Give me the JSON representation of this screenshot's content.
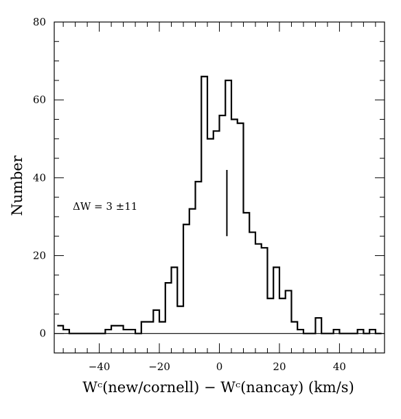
{
  "chart_data": {
    "type": "histogram",
    "xlabel": "Wᶜ(new/cornell) − Wᶜ(nancay) (km/s)",
    "ylabel": "Number",
    "xlim": [
      -55,
      55
    ],
    "ylim": [
      -5,
      80
    ],
    "grid": false,
    "bin_width": 2,
    "x_ticks": [
      -40,
      -20,
      0,
      20,
      40
    ],
    "x_tick_labels": [
      "−40",
      "−20",
      "0",
      "20",
      "40"
    ],
    "y_ticks": [
      0,
      20,
      40,
      60,
      80
    ],
    "y_tick_labels": [
      "0",
      "20",
      "40",
      "60",
      "80"
    ],
    "x_minor_step": 4,
    "y_minor_step": 5,
    "bins": [
      {
        "x": -53,
        "count": 2
      },
      {
        "x": -51,
        "count": 1
      },
      {
        "x": -49,
        "count": 0
      },
      {
        "x": -47,
        "count": 0
      },
      {
        "x": -45,
        "count": 0
      },
      {
        "x": -43,
        "count": 0
      },
      {
        "x": -41,
        "count": 0
      },
      {
        "x": -39,
        "count": 0
      },
      {
        "x": -37,
        "count": 1
      },
      {
        "x": -35,
        "count": 2
      },
      {
        "x": -33,
        "count": 2
      },
      {
        "x": -31,
        "count": 1
      },
      {
        "x": -29,
        "count": 1
      },
      {
        "x": -27,
        "count": 0
      },
      {
        "x": -25,
        "count": 3
      },
      {
        "x": -23,
        "count": 3
      },
      {
        "x": -21,
        "count": 6
      },
      {
        "x": -19,
        "count": 3
      },
      {
        "x": -17,
        "count": 13
      },
      {
        "x": -15,
        "count": 17
      },
      {
        "x": -13,
        "count": 7
      },
      {
        "x": -11,
        "count": 28
      },
      {
        "x": -9,
        "count": 32
      },
      {
        "x": -7,
        "count": 39
      },
      {
        "x": -5,
        "count": 66
      },
      {
        "x": -3,
        "count": 50
      },
      {
        "x": -1,
        "count": 52
      },
      {
        "x": 1,
        "count": 56
      },
      {
        "x": 3,
        "count": 65
      },
      {
        "x": 5,
        "count": 55
      },
      {
        "x": 7,
        "count": 54
      },
      {
        "x": 9,
        "count": 31
      },
      {
        "x": 11,
        "count": 26
      },
      {
        "x": 13,
        "count": 23
      },
      {
        "x": 15,
        "count": 22
      },
      {
        "x": 17,
        "count": 9
      },
      {
        "x": 19,
        "count": 17
      },
      {
        "x": 21,
        "count": 9
      },
      {
        "x": 23,
        "count": 11
      },
      {
        "x": 25,
        "count": 3
      },
      {
        "x": 27,
        "count": 1
      },
      {
        "x": 29,
        "count": 0
      },
      {
        "x": 31,
        "count": 0
      },
      {
        "x": 33,
        "count": 4
      },
      {
        "x": 35,
        "count": 0
      },
      {
        "x": 37,
        "count": 0
      },
      {
        "x": 39,
        "count": 1
      },
      {
        "x": 41,
        "count": 0
      },
      {
        "x": 43,
        "count": 0
      },
      {
        "x": 45,
        "count": 0
      },
      {
        "x": 47,
        "count": 1
      },
      {
        "x": 49,
        "count": 0
      },
      {
        "x": 51,
        "count": 1
      },
      {
        "x": 53,
        "count": 0
      }
    ],
    "zero_line": 0,
    "mean_marker": {
      "x": 2.5,
      "y_from": 25,
      "y_to": 42
    },
    "annotation": "ΔW = 3 ±11"
  }
}
